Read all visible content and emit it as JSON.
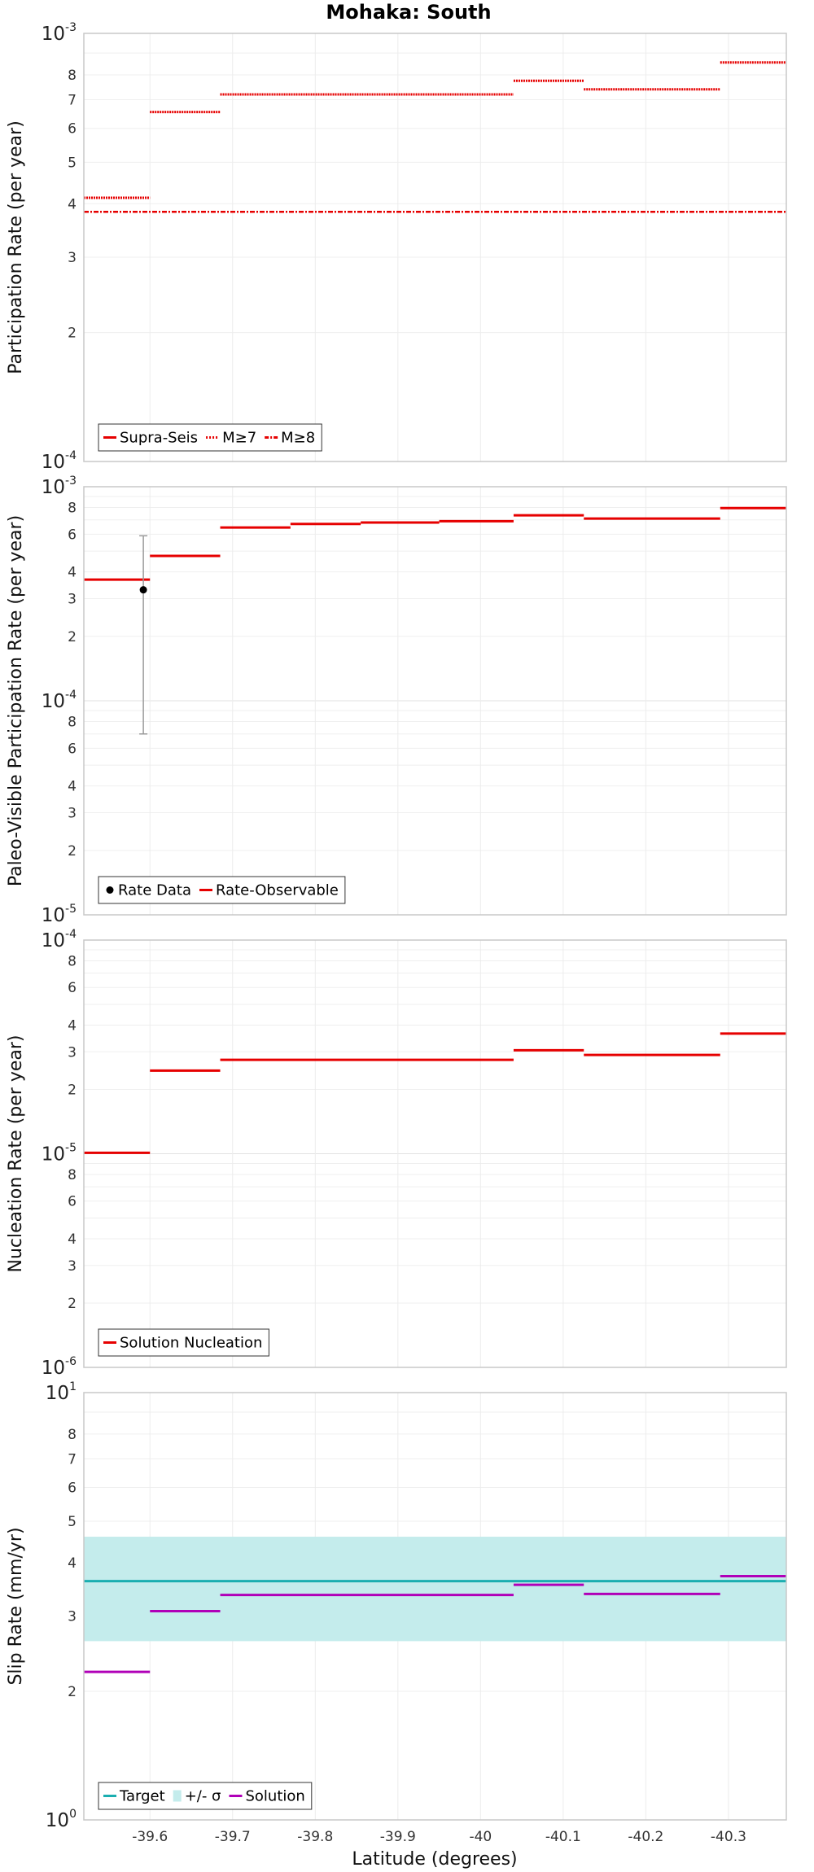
{
  "figure": {
    "title": "Mohaka: South",
    "xlabel": "Latitude (degrees)"
  },
  "chart_data": [
    {
      "type": "line",
      "ylabel": "Participation Rate (per year)",
      "yscale": "log",
      "ylim": [
        0.0001,
        0.001
      ],
      "xlim": [
        -39.52,
        -40.37
      ],
      "xticks": [
        -39.6,
        -39.7,
        -39.8,
        -39.9,
        -40,
        -40.1,
        -40.2,
        -40.3
      ],
      "xtick_labels": [
        "-39.6",
        "-39.7",
        "-39.8",
        "-39.9",
        "-40",
        "-40.1",
        "-40.2",
        "-40.3"
      ],
      "ytick_labels": [
        {
          "v": 0.0001,
          "base": "10",
          "exp": "-4"
        },
        {
          "v": 0.0002,
          "text": "2"
        },
        {
          "v": 0.0003,
          "text": "3"
        },
        {
          "v": 0.0004,
          "text": "4"
        },
        {
          "v": 0.0005,
          "text": "5"
        },
        {
          "v": 0.0006,
          "text": "6"
        },
        {
          "v": 0.0007,
          "text": "7"
        },
        {
          "v": 0.0008,
          "text": "8"
        },
        {
          "v": 0.001,
          "base": "10",
          "exp": "-3"
        }
      ],
      "grid": true,
      "legend_position": "bottom-left",
      "legend": [
        {
          "label": "Supra-Seis",
          "style": "solid",
          "color": "#e60000"
        },
        {
          "label": "M≥7",
          "style": "dotted",
          "color": "#e60000"
        },
        {
          "label": "M≥8",
          "style": "dashdot",
          "color": "#e60000"
        }
      ],
      "series": [
        {
          "name": "Supra-Seis",
          "color": "#e60000",
          "style": "dotted-fine",
          "segments": [
            {
              "x0": -39.52,
              "x1": -39.6,
              "y": 0.000413
            },
            {
              "x0": -39.6,
              "x1": -39.685,
              "y": 0.000655
            },
            {
              "x0": -39.685,
              "x1": -40.04,
              "y": 0.00072
            },
            {
              "x0": -40.04,
              "x1": -40.125,
              "y": 0.000775
            },
            {
              "x0": -40.125,
              "x1": -40.29,
              "y": 0.00074
            },
            {
              "x0": -40.29,
              "x1": -40.37,
              "y": 0.000855
            }
          ]
        },
        {
          "name": "M≥8",
          "color": "#e60000",
          "style": "dashdot",
          "segments": [
            {
              "x0": -39.52,
              "x1": -40.37,
              "y": 0.000383
            }
          ]
        }
      ]
    },
    {
      "type": "line",
      "ylabel": "Paleo-Visible Participation Rate (per year)",
      "yscale": "log",
      "ylim": [
        1e-05,
        0.001
      ],
      "xlim": [
        -39.52,
        -40.37
      ],
      "xticks": [
        -39.6,
        -39.7,
        -39.8,
        -39.9,
        -40,
        -40.1,
        -40.2,
        -40.3
      ],
      "ytick_labels": [
        {
          "v": 1e-05,
          "base": "10",
          "exp": "-5"
        },
        {
          "v": 2e-05,
          "text": "2"
        },
        {
          "v": 3e-05,
          "text": "3"
        },
        {
          "v": 4e-05,
          "text": "4"
        },
        {
          "v": 6e-05,
          "text": "6"
        },
        {
          "v": 8e-05,
          "text": "8"
        },
        {
          "v": 0.0001,
          "base": "10",
          "exp": "-4"
        },
        {
          "v": 0.0002,
          "text": "2"
        },
        {
          "v": 0.0003,
          "text": "3"
        },
        {
          "v": 0.0004,
          "text": "4"
        },
        {
          "v": 0.0006,
          "text": "6"
        },
        {
          "v": 0.0008,
          "text": "8"
        },
        {
          "v": 0.001,
          "base": "10",
          "exp": "-3"
        }
      ],
      "grid": true,
      "legend_position": "bottom-left",
      "legend": [
        {
          "label": "Rate Data",
          "style": "marker",
          "color": "#000000"
        },
        {
          "label": "Rate-Observable",
          "style": "solid",
          "color": "#e60000"
        }
      ],
      "series": [
        {
          "name": "Rate-Observable",
          "color": "#e60000",
          "style": "solid",
          "segments": [
            {
              "x0": -39.52,
              "x1": -39.6,
              "y": 0.000368
            },
            {
              "x0": -39.6,
              "x1": -39.685,
              "y": 0.000475
            },
            {
              "x0": -39.685,
              "x1": -39.77,
              "y": 0.000645
            },
            {
              "x0": -39.77,
              "x1": -39.855,
              "y": 0.00067
            },
            {
              "x0": -39.855,
              "x1": -39.95,
              "y": 0.00068
            },
            {
              "x0": -39.95,
              "x1": -40.04,
              "y": 0.00069
            },
            {
              "x0": -40.04,
              "x1": -40.125,
              "y": 0.000735
            },
            {
              "x0": -40.125,
              "x1": -40.29,
              "y": 0.00071
            },
            {
              "x0": -40.29,
              "x1": -40.37,
              "y": 0.000795
            }
          ]
        },
        {
          "name": "Rate Data",
          "color": "#000000",
          "style": "marker",
          "points": [
            {
              "x": -39.592,
              "y": 0.00033,
              "ylow": 7e-05,
              "yhigh": 0.00059
            }
          ]
        }
      ]
    },
    {
      "type": "line",
      "ylabel": "Nucleation Rate (per year)",
      "yscale": "log",
      "ylim": [
        1e-06,
        0.0001
      ],
      "xlim": [
        -39.52,
        -40.37
      ],
      "xticks": [
        -39.6,
        -39.7,
        -39.8,
        -39.9,
        -40,
        -40.1,
        -40.2,
        -40.3
      ],
      "ytick_labels": [
        {
          "v": 1e-06,
          "base": "10",
          "exp": "-6"
        },
        {
          "v": 2e-06,
          "text": "2"
        },
        {
          "v": 3e-06,
          "text": "3"
        },
        {
          "v": 4e-06,
          "text": "4"
        },
        {
          "v": 6e-06,
          "text": "6"
        },
        {
          "v": 8e-06,
          "text": "8"
        },
        {
          "v": 1e-05,
          "base": "10",
          "exp": "-5"
        },
        {
          "v": 2e-05,
          "text": "2"
        },
        {
          "v": 3e-05,
          "text": "3"
        },
        {
          "v": 4e-05,
          "text": "4"
        },
        {
          "v": 6e-05,
          "text": "6"
        },
        {
          "v": 8e-05,
          "text": "8"
        },
        {
          "v": 0.0001,
          "base": "10",
          "exp": "-4"
        }
      ],
      "grid": true,
      "legend_position": "bottom-left",
      "legend": [
        {
          "label": "Solution Nucleation",
          "style": "solid",
          "color": "#e60000"
        }
      ],
      "series": [
        {
          "name": "Solution Nucleation",
          "color": "#e60000",
          "style": "solid",
          "segments": [
            {
              "x0": -39.52,
              "x1": -39.6,
              "y": 1.01e-05
            },
            {
              "x0": -39.6,
              "x1": -39.685,
              "y": 2.45e-05
            },
            {
              "x0": -39.685,
              "x1": -40.04,
              "y": 2.75e-05
            },
            {
              "x0": -40.04,
              "x1": -40.125,
              "y": 3.05e-05
            },
            {
              "x0": -40.125,
              "x1": -40.29,
              "y": 2.9e-05
            },
            {
              "x0": -40.29,
              "x1": -40.37,
              "y": 3.65e-05
            }
          ]
        }
      ]
    },
    {
      "type": "line",
      "ylabel": "Slip Rate (mm/yr)",
      "yscale": "log",
      "ylim": [
        1,
        10
      ],
      "xlim": [
        -39.52,
        -40.37
      ],
      "xticks": [
        -39.6,
        -39.7,
        -39.8,
        -39.9,
        -40,
        -40.1,
        -40.2,
        -40.3
      ],
      "xtick_labels": [
        "-39.6",
        "-39.7",
        "-39.8",
        "-39.9",
        "-40",
        "-40.1",
        "-40.2",
        "-40.3"
      ],
      "ytick_labels": [
        {
          "v": 1,
          "base": "10",
          "exp": "0"
        },
        {
          "v": 2,
          "text": "2"
        },
        {
          "v": 3,
          "text": "3"
        },
        {
          "v": 4,
          "text": "4"
        },
        {
          "v": 5,
          "text": "5"
        },
        {
          "v": 6,
          "text": "6"
        },
        {
          "v": 7,
          "text": "7"
        },
        {
          "v": 8,
          "text": "8"
        },
        {
          "v": 10,
          "base": "10",
          "exp": "1"
        }
      ],
      "grid": true,
      "legend_position": "bottom-left",
      "legend": [
        {
          "label": "Target",
          "style": "solid",
          "color": "#1aaeb0"
        },
        {
          "label": "+/- σ",
          "style": "band",
          "color": "#c4ecec"
        },
        {
          "label": "Solution",
          "style": "solid",
          "color": "#b000b8"
        }
      ],
      "band": {
        "name": "+/- σ",
        "color": "#c4ecec",
        "ylow": 2.62,
        "yhigh": 4.6
      },
      "series": [
        {
          "name": "Target",
          "color": "#1aaeb0",
          "style": "solid",
          "segments": [
            {
              "x0": -39.52,
              "x1": -40.37,
              "y": 3.62
            }
          ]
        },
        {
          "name": "Solution",
          "color": "#b000b8",
          "style": "solid",
          "segments": [
            {
              "x0": -39.52,
              "x1": -39.6,
              "y": 2.22
            },
            {
              "x0": -39.6,
              "x1": -39.685,
              "y": 3.08
            },
            {
              "x0": -39.685,
              "x1": -40.04,
              "y": 3.36
            },
            {
              "x0": -40.04,
              "x1": -40.125,
              "y": 3.55
            },
            {
              "x0": -40.125,
              "x1": -40.29,
              "y": 3.38
            },
            {
              "x0": -40.29,
              "x1": -40.37,
              "y": 3.72
            }
          ]
        }
      ]
    }
  ]
}
